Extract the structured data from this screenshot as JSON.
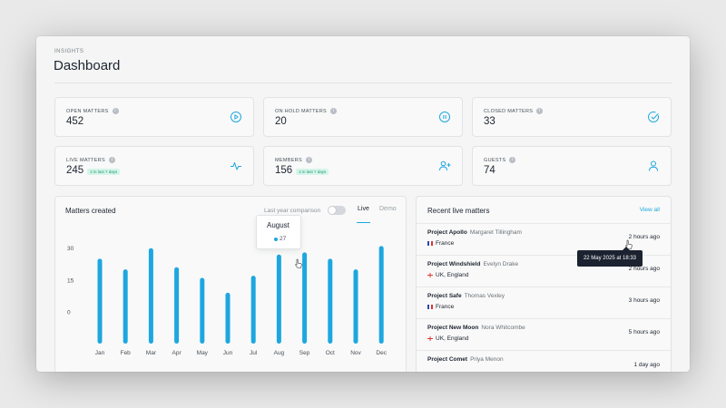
{
  "header": {
    "eyebrow": "INSIGHTS",
    "title": "Dashboard"
  },
  "stats": [
    {
      "label": "OPEN MATTERS",
      "value": "452",
      "badge": "",
      "icon": "play-circle-icon"
    },
    {
      "label": "ON HOLD MATTERS",
      "value": "20",
      "badge": "",
      "icon": "pause-circle-icon"
    },
    {
      "label": "CLOSED MATTERS",
      "value": "33",
      "badge": "",
      "icon": "check-circle-icon"
    },
    {
      "label": "LIVE MATTERS",
      "value": "245",
      "badge": "2 in last 7 days",
      "icon": "activity-icon"
    },
    {
      "label": "MEMBERS",
      "value": "156",
      "badge": "2 in last 7 days",
      "icon": "user-plus-icon"
    },
    {
      "label": "GUESTS",
      "value": "74",
      "badge": "",
      "icon": "user-icon"
    }
  ],
  "chart_panel": {
    "title": "Matters created",
    "toggle_label": "Last year comparison",
    "tab_live": "Live",
    "tab_demo": "Demo",
    "tooltip": {
      "month": "August",
      "value": "27"
    }
  },
  "chart_data": {
    "type": "bar",
    "categories": [
      "Jan",
      "Feb",
      "Mar",
      "Apr",
      "May",
      "Jun",
      "Jul",
      "Aug",
      "Sep",
      "Oct",
      "Nov",
      "Dec"
    ],
    "values": [
      25,
      20,
      30,
      21,
      16,
      9,
      17,
      27,
      28,
      25,
      20,
      31
    ],
    "ylim": [
      -15,
      38
    ],
    "yticks": [
      "30",
      "15",
      "0"
    ],
    "bar_color": "#1da7e0",
    "grid": false
  },
  "recent": {
    "title": "Recent live matters",
    "view_all": "View all",
    "items": [
      {
        "project": "Project Apollo",
        "person": "Margaret Tillingham",
        "location": "France",
        "flag": "fr",
        "time": "2 hours ago"
      },
      {
        "project": "Project Windshield",
        "person": "Evelyn Drake",
        "location": "UK, England",
        "flag": "uk",
        "time": "2 hours ago"
      },
      {
        "project": "Project Safe",
        "person": "Thomas Vexley",
        "location": "France",
        "flag": "fr",
        "time": "3 hours ago"
      },
      {
        "project": "Project New Moon",
        "person": "Nora Whitcombe",
        "location": "UK, England",
        "flag": "uk",
        "time": "5 hours ago"
      },
      {
        "project": "Project Comet",
        "person": "Priya Menon",
        "location": "",
        "flag": "",
        "time": "1 day ago"
      }
    ],
    "hover_tooltip": "22 May 2025 at 18:33"
  },
  "colors": {
    "accent": "#1da7e0",
    "badge_bg": "#d6f5ea",
    "badge_text": "#1f9a73"
  }
}
